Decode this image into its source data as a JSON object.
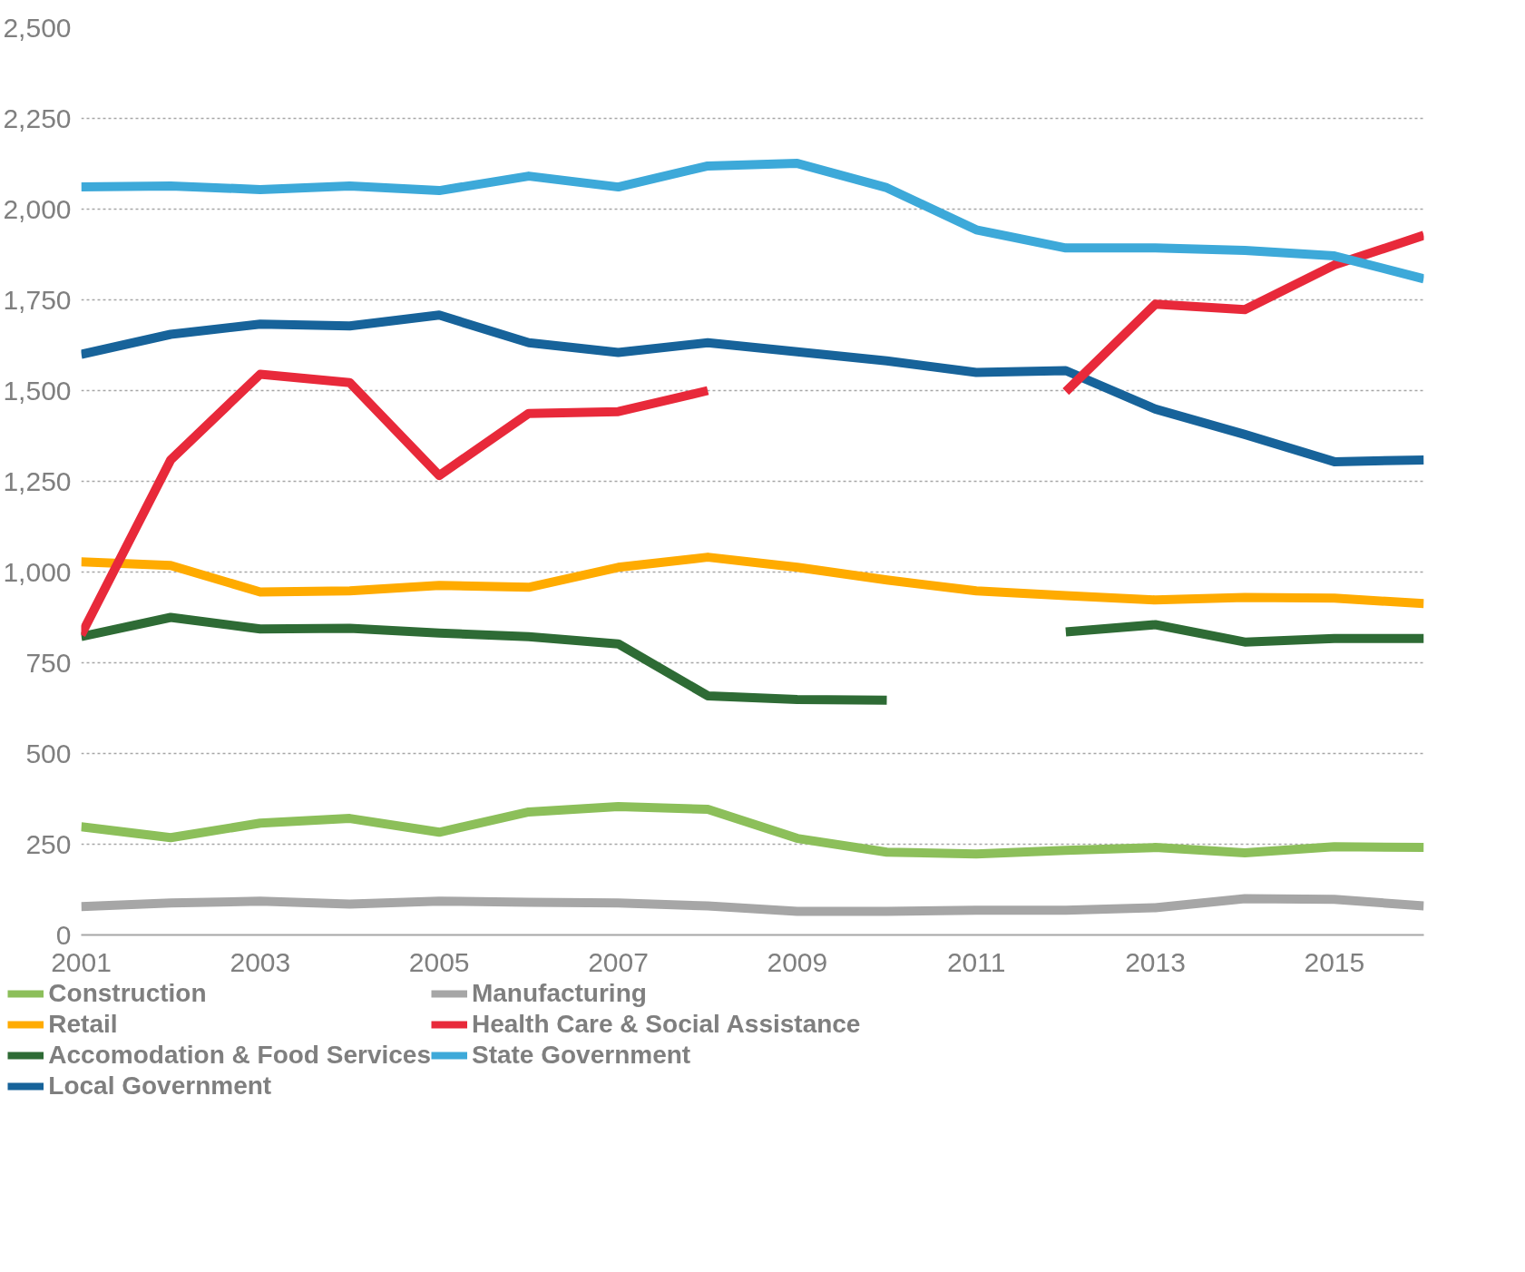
{
  "chart_data": {
    "type": "line",
    "x": [
      2001,
      2002,
      2003,
      2004,
      2005,
      2006,
      2007,
      2008,
      2009,
      2010,
      2011,
      2012,
      2013,
      2014,
      2015,
      2016
    ],
    "xlim": [
      2001,
      2016
    ],
    "xticks": [
      2001,
      2003,
      2005,
      2007,
      2009,
      2011,
      2013,
      2015
    ],
    "ylim": [
      0,
      2500
    ],
    "yticks": [
      {
        "value": 0,
        "label": "0"
      },
      {
        "value": 250,
        "label": "250"
      },
      {
        "value": 500,
        "label": "500"
      },
      {
        "value": 750,
        "label": "750"
      },
      {
        "value": 1000,
        "label": "1,000"
      },
      {
        "value": 1250,
        "label": "1,250"
      },
      {
        "value": 1500,
        "label": "1,500"
      },
      {
        "value": 1750,
        "label": "1,750"
      },
      {
        "value": 2000,
        "label": "2,000"
      },
      {
        "value": 2250,
        "label": "2,250"
      },
      {
        "value": 2500,
        "label": "2,500"
      }
    ],
    "grid": "y",
    "legend": "bottom",
    "line_style": "solid",
    "marker": "none",
    "series": [
      {
        "name": "Construction",
        "color": "#8cbf5a",
        "values": [
          298,
          268,
          308,
          321,
          283,
          339,
          354,
          346,
          266,
          228,
          223,
          233,
          241,
          226,
          243,
          241
        ]
      },
      {
        "name": "Retail",
        "color": "#ffab00",
        "values": [
          1028,
          1018,
          945,
          948,
          963,
          958,
          1013,
          1041,
          1013,
          978,
          948,
          935,
          923,
          930,
          928,
          913
        ]
      },
      {
        "name": "Accomodation & Food Services",
        "color": "#2e6b35",
        "values": [
          822,
          875,
          843,
          845,
          832,
          822,
          802,
          659,
          649,
          647,
          null,
          835,
          855,
          807,
          817,
          817
        ]
      },
      {
        "name": "Local Government",
        "color": "#17639a",
        "values": [
          1600,
          1655,
          1683,
          1678,
          1708,
          1632,
          1605,
          1632,
          1607,
          1582,
          1550,
          1555,
          1449,
          1379,
          1304,
          1309
        ]
      },
      {
        "name": "Manufacturing",
        "color": "#a6a6a6",
        "values": [
          78,
          88,
          93,
          85,
          93,
          90,
          88,
          80,
          65,
          65,
          68,
          68,
          75,
          100,
          98,
          80
        ]
      },
      {
        "name": "Health Care & Social Assistance",
        "color": "#e8293a",
        "values": [
          827,
          1309,
          1545,
          1522,
          1266,
          1437,
          1442,
          1500,
          null,
          null,
          null,
          1497,
          1738,
          1723,
          1846,
          1928
        ]
      },
      {
        "name": "State Government",
        "color": "#3da9d9",
        "values": [
          2061,
          2064,
          2054,
          2064,
          2051,
          2091,
          2061,
          2119,
          2126,
          2059,
          1943,
          1893,
          1893,
          1886,
          1871,
          1808
        ]
      }
    ]
  }
}
